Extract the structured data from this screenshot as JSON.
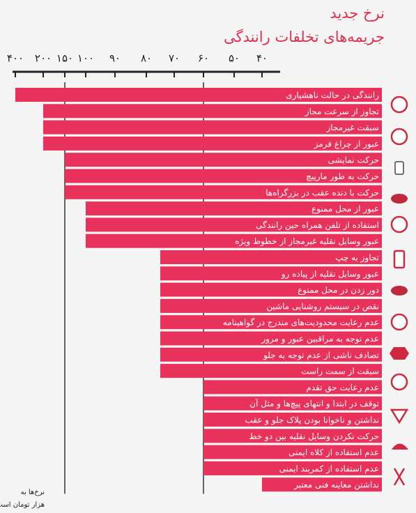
{
  "chart_data": {
    "type": "bar",
    "orientation": "horizontal",
    "title": "نرخ جدید",
    "subtitle": "جریمه‌های تخلفات رانندگی",
    "annotations": [
      "نرخ‌ها به",
      "هزار تومان است"
    ],
    "categories": [
      "رانندگی در حالت ناهشیاری",
      "تجاوز از سرعت مجاز",
      "سبقت غیرمجاز",
      "عبور از چراغ قرمز",
      "حرکت نمایشی",
      "حرکت به طور مارپیچ",
      "حرکت با دنده عقب در بزرگراه‌ها",
      "عبور از محل ممنوع",
      "استفاده از تلفن همراه حین رانندگی",
      "عبور وسایل نقلیه غیرمجاز از خطوط ویژه",
      "تجاوز به چپ",
      "عبور وسایل نقلیه از پیاده رو",
      "دور زدن در محل ممنوع",
      "نقص در سیستم روشنایی ماشین",
      "عدم رعایت محدودیت‌های مندرج در گواهینامه",
      "عدم توجه به مراقبین عبور و مرور",
      "تصادف ناشی از عدم توجه به جلو",
      "سبقت از سمت راست",
      "عدم رعایت حق تقدم",
      "توقف در ابتدا و انتهای پیچ‌ها و مثل آن",
      "نداشتن و ناخوانا بودن پلاک جلو و عقب",
      "حرکت نکردن وسایل نقلیه بین دو خط",
      "عدم استفاده از کلاه ایمنی",
      "عدم استفاده از کمربند ایمنی",
      "نداشتن معاینه فنی معتبر"
    ],
    "values": [
      400,
      200,
      200,
      200,
      150,
      150,
      150,
      100,
      100,
      100,
      75,
      75,
      75,
      75,
      75,
      75,
      75,
      75,
      60,
      60,
      60,
      60,
      60,
      60,
      40
    ],
    "color": "#e8325c",
    "xlim": [
      400,
      40
    ],
    "xticks": [
      {
        "value": 400,
        "label": "۴۰۰"
      },
      {
        "value": 200,
        "label": "۲۰۰"
      },
      {
        "value": 150,
        "label": "۱۵۰"
      },
      {
        "value": 100,
        "label": "۱۰۰"
      },
      {
        "value": 90,
        "label": "۹۰"
      },
      {
        "value": 80,
        "label": "۸۰"
      },
      {
        "value": 70,
        "label": "۷۰"
      },
      {
        "value": 60,
        "label": "۶۰"
      },
      {
        "value": 50,
        "label": "۵۰"
      },
      {
        "value": 40,
        "label": "۴۰"
      }
    ],
    "grid_values": [
      150,
      60
    ]
  }
}
